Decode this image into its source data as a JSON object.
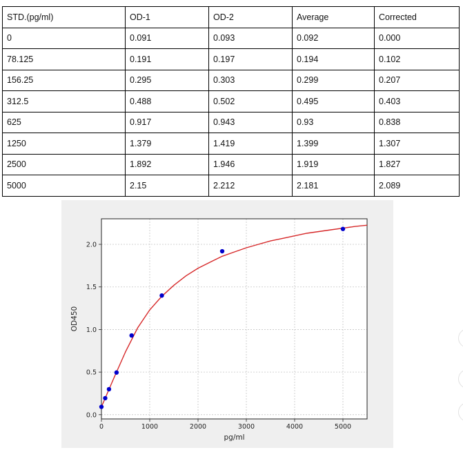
{
  "table": {
    "headers": [
      "STD.(pg/ml)",
      "OD-1",
      "OD-2",
      "Average",
      "Corrected"
    ],
    "rows": [
      [
        "0",
        "0.091",
        "0.093",
        "0.092",
        "0.000"
      ],
      [
        "78.125",
        "0.191",
        "0.197",
        "0.194",
        "0.102"
      ],
      [
        "156.25",
        "0.295",
        "0.303",
        "0.299",
        "0.207"
      ],
      [
        "312.5",
        "0.488",
        "0.502",
        "0.495",
        "0.403"
      ],
      [
        "625",
        "0.917",
        "0.943",
        "0.93",
        "0.838"
      ],
      [
        "1250",
        "1.379",
        "1.419",
        "1.399",
        "1.307"
      ],
      [
        "2500",
        "1.892",
        "1.946",
        "1.919",
        "1.827"
      ],
      [
        "5000",
        "2.15",
        "2.212",
        "2.181",
        "2.089"
      ]
    ]
  },
  "chart_data": {
    "type": "scatter",
    "xlabel": "pg/ml",
    "ylabel": "OD450",
    "xlim": [
      0,
      5500
    ],
    "ylim": [
      -0.05,
      2.3
    ],
    "xticks": [
      0,
      1000,
      2000,
      3000,
      4000,
      5000
    ],
    "yticks": [
      0.0,
      0.5,
      1.0,
      1.5,
      2.0
    ],
    "xtick_labels": [
      "0",
      "1000",
      "2000",
      "3000",
      "4000",
      "5000"
    ],
    "ytick_labels": [
      "0.0",
      "0.5",
      "1.0",
      "1.5",
      "2.0"
    ],
    "grid": true,
    "points": {
      "x": [
        0,
        78.125,
        156.25,
        312.5,
        625,
        1250,
        2500,
        5000
      ],
      "y": [
        0.092,
        0.194,
        0.299,
        0.495,
        0.93,
        1.399,
        1.919,
        2.181
      ],
      "color": "#0000cc"
    },
    "fit_curve": {
      "color": "#d62728",
      "x": [
        0,
        250,
        500,
        750,
        1000,
        1250,
        1500,
        1750,
        2000,
        2250,
        2500,
        2750,
        3000,
        3250,
        3500,
        3750,
        4000,
        4250,
        4500,
        4750,
        5000,
        5250,
        5500
      ],
      "y": [
        0.092,
        0.42,
        0.74,
        1.02,
        1.23,
        1.39,
        1.52,
        1.63,
        1.72,
        1.79,
        1.86,
        1.91,
        1.96,
        2.0,
        2.04,
        2.07,
        2.1,
        2.13,
        2.15,
        2.17,
        2.19,
        2.21,
        2.225
      ]
    }
  }
}
